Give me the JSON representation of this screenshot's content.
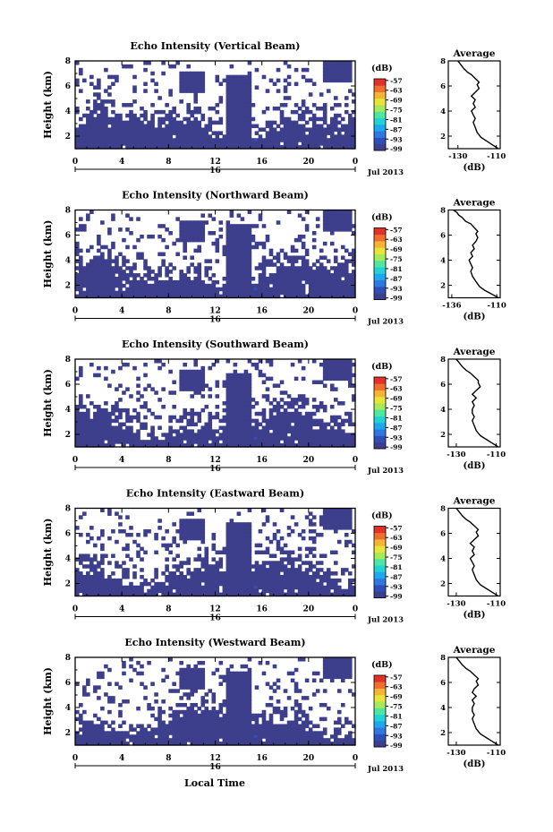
{
  "x_axis": {
    "ticks": [
      "0",
      "4",
      "8",
      "12",
      "16",
      "20",
      "0"
    ],
    "sub_label": "16",
    "date_label": "Jul 2013",
    "xlabel": "Local Time",
    "range_hours": [
      0,
      24
    ]
  },
  "y_axis": {
    "label": "Height (km)",
    "ticks": [
      "2",
      "4",
      "6",
      "8"
    ],
    "range_km": [
      1,
      8
    ]
  },
  "colorbar": {
    "unit": "(dB)",
    "ticks": [
      "-57",
      "-63",
      "-69",
      "-75",
      "-81",
      "-87",
      "-93",
      "-99"
    ],
    "range_db": [
      -100,
      -56
    ],
    "colors": [
      "#3d3f8c",
      "#2f4fb8",
      "#2f78e0",
      "#1ea8f0",
      "#22d3d6",
      "#4ee6a0",
      "#a6ea5a",
      "#e8e43a",
      "#f5b533",
      "#f06f2e",
      "#e3302a"
    ]
  },
  "profile_common": {
    "title": "Average",
    "xlabel": "(dB)",
    "ticks_y": [
      "2",
      "4",
      "6",
      "8"
    ]
  },
  "chart_data": [
    {
      "type": "heatmap",
      "title": "Echo Intensity (Vertical Beam)",
      "profile": {
        "type": "line",
        "xticks": [
          "-130",
          "-110"
        ],
        "xlim": [
          -135,
          -108
        ],
        "x": [
          -109,
          -112,
          -115,
          -118,
          -120,
          -121,
          -122,
          -121,
          -122,
          -123,
          -121,
          -122,
          -121,
          -123,
          -121,
          -119,
          -120,
          -119,
          -121,
          -123,
          -125,
          -127,
          -128,
          -129,
          -130
        ],
        "y": [
          1.0,
          1.3,
          1.6,
          1.9,
          2.3,
          2.7,
          3.1,
          3.4,
          3.7,
          4.0,
          4.3,
          4.6,
          4.9,
          5.2,
          5.5,
          5.8,
          6.1,
          6.3,
          6.6,
          6.9,
          7.1,
          7.4,
          7.6,
          7.8,
          8.0
        ]
      }
    },
    {
      "type": "heatmap",
      "title": "Echo Intensity (Northward Beam)",
      "profile": {
        "type": "line",
        "xticks": [
          "-136",
          "-110"
        ],
        "xlim": [
          -138,
          -108
        ],
        "x": [
          -109,
          -113,
          -117,
          -120,
          -122,
          -124,
          -125,
          -124,
          -125,
          -126,
          -124,
          -125,
          -123,
          -124,
          -122,
          -121,
          -122,
          -121,
          -123,
          -125,
          -128,
          -130,
          -132,
          -133,
          -135
        ],
        "y": [
          1.0,
          1.3,
          1.6,
          1.9,
          2.3,
          2.7,
          3.1,
          3.4,
          3.7,
          4.0,
          4.3,
          4.6,
          4.9,
          5.2,
          5.5,
          5.8,
          6.1,
          6.3,
          6.6,
          6.9,
          7.1,
          7.4,
          7.6,
          7.8,
          8.0
        ]
      }
    },
    {
      "type": "heatmap",
      "title": "Echo Intensity (Southward Beam)",
      "profile": {
        "type": "line",
        "xticks": [
          "-130",
          "-110"
        ],
        "xlim": [
          -134,
          -108
        ],
        "x": [
          -109,
          -112,
          -115,
          -118,
          -120,
          -121,
          -122,
          -121,
          -122,
          -122,
          -121,
          -122,
          -120,
          -122,
          -120,
          -118,
          -119,
          -119,
          -121,
          -123,
          -125,
          -127,
          -128,
          -129,
          -130
        ],
        "y": [
          1.0,
          1.3,
          1.6,
          1.9,
          2.3,
          2.7,
          3.1,
          3.4,
          3.7,
          4.0,
          4.3,
          4.6,
          4.9,
          5.2,
          5.5,
          5.8,
          6.1,
          6.3,
          6.6,
          6.9,
          7.1,
          7.4,
          7.6,
          7.8,
          8.0
        ]
      }
    },
    {
      "type": "heatmap",
      "title": "Echo Intensity (Eastward Beam)",
      "profile": {
        "type": "line",
        "xticks": [
          "-130",
          "-110"
        ],
        "xlim": [
          -134,
          -108
        ],
        "x": [
          -109,
          -112,
          -115,
          -118,
          -120,
          -121,
          -122,
          -121,
          -122,
          -123,
          -121,
          -122,
          -121,
          -123,
          -121,
          -119,
          -120,
          -119,
          -121,
          -123,
          -125,
          -127,
          -128,
          -129,
          -130
        ],
        "y": [
          1.0,
          1.3,
          1.6,
          1.9,
          2.3,
          2.7,
          3.1,
          3.4,
          3.7,
          4.0,
          4.3,
          4.6,
          4.9,
          5.2,
          5.5,
          5.8,
          6.1,
          6.3,
          6.6,
          6.9,
          7.1,
          7.4,
          7.6,
          7.8,
          8.0
        ]
      }
    },
    {
      "type": "heatmap",
      "title": "Echo Intensity (Westward Beam)",
      "profile": {
        "type": "line",
        "xticks": [
          "-130",
          "-110"
        ],
        "xlim": [
          -134,
          -108
        ],
        "x": [
          -109,
          -112,
          -115,
          -118,
          -120,
          -121,
          -122,
          -121,
          -122,
          -122,
          -121,
          -122,
          -120,
          -122,
          -121,
          -119,
          -120,
          -119,
          -121,
          -123,
          -125,
          -127,
          -128,
          -129,
          -130
        ],
        "y": [
          1.0,
          1.3,
          1.6,
          1.9,
          2.3,
          2.7,
          3.1,
          3.4,
          3.7,
          4.0,
          4.3,
          4.6,
          4.9,
          5.2,
          5.5,
          5.8,
          6.1,
          6.3,
          6.6,
          6.9,
          7.1,
          7.4,
          7.6,
          7.8,
          8.0
        ]
      }
    }
  ]
}
